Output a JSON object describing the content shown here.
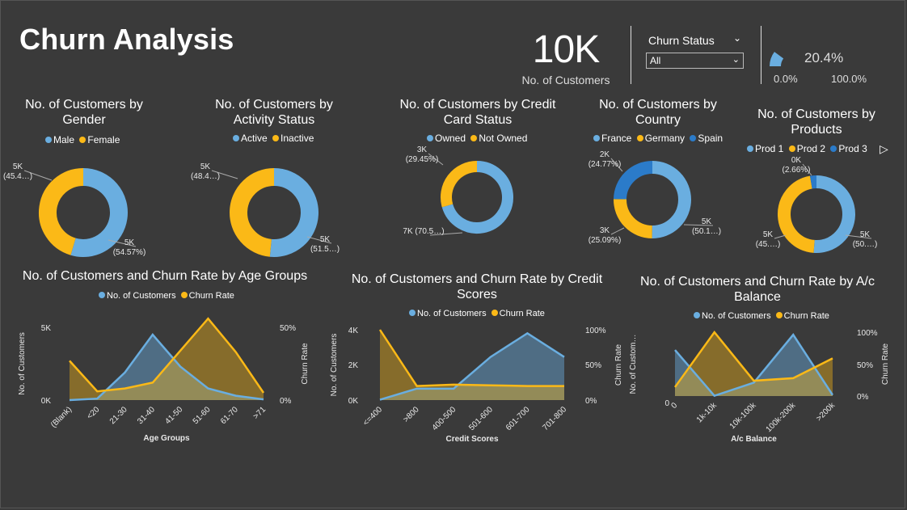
{
  "header": {
    "title": "Churn Analysis",
    "kpi_value": "10K",
    "kpi_label": "No. of Customers",
    "slicer_title": "Churn Status",
    "slicer_value": "All",
    "gauge_value": "20.4%",
    "gauge_min": "0.0%",
    "gauge_max": "100.0%",
    "gauge_fraction": 0.204
  },
  "colors": {
    "blue": "#6aaee0",
    "orange": "#fbb917",
    "dark_blue": "#2b7bc9",
    "background": "#3a3a3a"
  },
  "icons": {
    "slicer_chevron": "chevron-down-icon",
    "dropdown": "chevron-down-icon",
    "next_page": "chevron-right-icon"
  },
  "donuts": [
    {
      "title_lines": [
        "No. of Customers by",
        "Gender"
      ],
      "legend": [
        "Male",
        "Female"
      ],
      "labels": [
        {
          "v": "5K",
          "p": "(54.57%)"
        },
        {
          "v": "5K",
          "p": "(45.4…)"
        }
      ]
    },
    {
      "title_lines": [
        "No. of Customers by",
        "Activity Status"
      ],
      "legend": [
        "Active",
        "Inactive"
      ],
      "labels": [
        {
          "v": "5K",
          "p": "(51.5…)"
        },
        {
          "v": "5K",
          "p": "(48.4…)"
        }
      ]
    },
    {
      "title_lines": [
        "No. of Customers by Credit",
        "Card Status"
      ],
      "legend": [
        "Owned",
        "Not Owned"
      ],
      "labels": [
        {
          "v": "7K (70.5…)",
          "p": ""
        },
        {
          "v": "3K",
          "p": "(29.45%)"
        }
      ]
    },
    {
      "title_lines": [
        "No. of Customers by",
        "Country"
      ],
      "legend": [
        "France",
        "Germany",
        "Spain"
      ],
      "labels": [
        {
          "v": "5K",
          "p": "(50.1…)"
        },
        {
          "v": "3K",
          "p": "(25.09%)"
        },
        {
          "v": "2K",
          "p": "(24.77%)"
        }
      ]
    },
    {
      "title_lines": [
        "No. of Customers by",
        "Products"
      ],
      "legend": [
        "Prod 1",
        "Prod 2",
        "Prod 3"
      ],
      "labels": [
        {
          "v": "5K",
          "p": "(50.…)"
        },
        {
          "v": "5K",
          "p": "(45.…)"
        },
        {
          "v": "0K",
          "p": "(2.66%)"
        }
      ]
    }
  ],
  "combo_charts": [
    {
      "title_lines": [
        "No. of Customers and Churn Rate by Age Groups"
      ],
      "legend": [
        "No. of Customers",
        "Churn Rate"
      ],
      "y_label": "No. of Customers",
      "y2_label": "Churn Rate",
      "x_label": "Age Groups",
      "y_ticks": [
        "5K",
        "0K"
      ],
      "y2_ticks": [
        "50%",
        "0%"
      ]
    },
    {
      "title_lines": [
        "No. of Customers and Churn Rate by Credit",
        "Scores"
      ],
      "legend": [
        "No. of Customers",
        "Churn Rate"
      ],
      "y_label": "No. of Customers",
      "y2_label": "Churn Rate",
      "x_label": "Credit Scores",
      "y_ticks": [
        "4K",
        "2K",
        "0K"
      ],
      "y2_ticks": [
        "100%",
        "50%",
        "0%"
      ]
    },
    {
      "title_lines": [
        "No. of Customers and Churn Rate by A/c",
        "Balance"
      ],
      "legend": [
        "No. of Customers",
        "Churn Rate"
      ],
      "y_label": "No. of Custom…",
      "y2_label": "Churn Rate",
      "x_label": "A/c Balance",
      "y_ticks": [
        "0"
      ],
      "y2_ticks": [
        "100%",
        "50%",
        "0%"
      ]
    }
  ],
  "chart_data": [
    {
      "type": "pie",
      "title": "No. of Customers by Gender",
      "categories": [
        "Male",
        "Female"
      ],
      "values": [
        54.57,
        45.43
      ]
    },
    {
      "type": "pie",
      "title": "No. of Customers by Activity Status",
      "categories": [
        "Active",
        "Inactive"
      ],
      "values": [
        51.5,
        48.5
      ]
    },
    {
      "type": "pie",
      "title": "No. of Customers by Credit Card Status",
      "categories": [
        "Owned",
        "Not Owned"
      ],
      "values": [
        70.55,
        29.45
      ]
    },
    {
      "type": "pie",
      "title": "No. of Customers by Country",
      "categories": [
        "France",
        "Germany",
        "Spain"
      ],
      "values": [
        50.14,
        25.09,
        24.77
      ]
    },
    {
      "type": "pie",
      "title": "No. of Customers by Products",
      "categories": [
        "Prod 1",
        "Prod 2",
        "Prod 3"
      ],
      "values": [
        50.84,
        45.9,
        2.66
      ]
    },
    {
      "type": "area",
      "title": "No. of Customers and Churn Rate by Age Groups",
      "categories": [
        "(Blank)",
        "<20",
        "21-30",
        "31-40",
        "41-50",
        "51-60",
        "61-70",
        ">71"
      ],
      "series": [
        {
          "name": "No. of Customers",
          "axis": "left",
          "values": [
            0,
            100,
            1900,
            4500,
            2300,
            800,
            300,
            50
          ]
        },
        {
          "name": "Churn Rate",
          "axis": "right",
          "values": [
            0.27,
            0.06,
            0.08,
            0.12,
            0.34,
            0.56,
            0.33,
            0.05
          ]
        }
      ],
      "xlabel": "Age Groups",
      "ylabel": "No. of Customers",
      "y2label": "Churn Rate",
      "ylim": [
        0,
        5000
      ],
      "y2lim": [
        0,
        0.5
      ]
    },
    {
      "type": "area",
      "title": "No. of Customers and Churn Rate by Credit Scores",
      "categories": [
        "<=400",
        ">800",
        "400-500",
        "501-600",
        "601-700",
        "701-800"
      ],
      "series": [
        {
          "name": "No. of Customers",
          "axis": "left",
          "values": [
            20,
            650,
            650,
            2450,
            3800,
            2450
          ]
        },
        {
          "name": "Churn Rate",
          "axis": "right",
          "values": [
            1.0,
            0.2,
            0.22,
            0.21,
            0.2,
            0.2
          ]
        }
      ],
      "xlabel": "Credit Scores",
      "ylabel": "No. of Customers",
      "y2label": "Churn Rate",
      "ylim": [
        0,
        4000
      ],
      "y2lim": [
        0,
        1.0
      ]
    },
    {
      "type": "area",
      "title": "No. of Customers and Churn Rate by A/c Balance",
      "categories": [
        "0",
        "1k-10k",
        "10k-100k",
        "100k-200k",
        ">200k"
      ],
      "series": [
        {
          "name": "No. of Customers",
          "axis": "left",
          "values": [
            3600,
            20,
            1050,
            4800,
            80
          ]
        },
        {
          "name": "Churn Rate",
          "axis": "right",
          "values": [
            0.14,
            1.0,
            0.24,
            0.28,
            0.59
          ]
        }
      ],
      "xlabel": "A/c Balance",
      "ylabel": "No. of Customers",
      "y2label": "Churn Rate",
      "ylim": [
        0,
        5000
      ],
      "y2lim": [
        0,
        1.0
      ]
    }
  ]
}
